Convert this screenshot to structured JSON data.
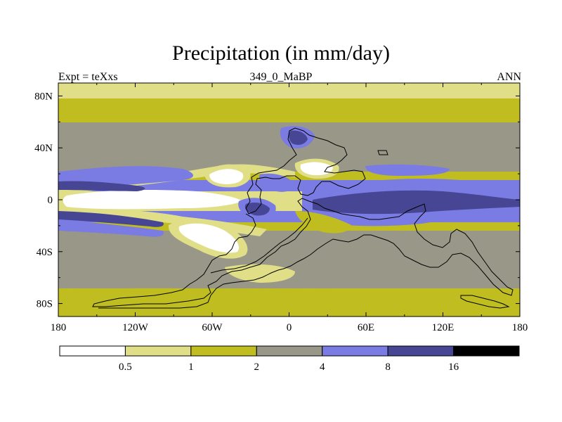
{
  "title": "Precipitation (in mm/day)",
  "subtitle_left": "Expt = teXxs",
  "subtitle_center": "349_0_MaBP",
  "subtitle_right": "ANN",
  "y_axis": {
    "ticks": [
      {
        "lat": 80,
        "label": "80N"
      },
      {
        "lat": 40,
        "label": "40N"
      },
      {
        "lat": 0,
        "label": "0"
      },
      {
        "lat": -40,
        "label": "40S"
      },
      {
        "lat": -80,
        "label": "80S"
      }
    ]
  },
  "x_axis": {
    "ticks": [
      {
        "lon": -180,
        "label": "180"
      },
      {
        "lon": -120,
        "label": "120W"
      },
      {
        "lon": -60,
        "label": "60W"
      },
      {
        "lon": 0,
        "label": "0"
      },
      {
        "lon": 60,
        "label": "60E"
      },
      {
        "lon": 120,
        "label": "120E"
      },
      {
        "lon": 180,
        "label": "180"
      }
    ]
  },
  "colorbar": {
    "colors": [
      "#ffffff",
      "#e0df88",
      "#bfbd1f",
      "#999888",
      "#7b7be4",
      "#464695",
      "#000000"
    ],
    "labels": [
      "0.5",
      "1",
      "2",
      "4",
      "8",
      "16"
    ]
  },
  "colors": {
    "white": "#ffffff",
    "light_yellow": "#e0df88",
    "olive": "#bfbd1f",
    "gray": "#999888",
    "blue": "#7b7be4",
    "dark_blue": "#464695",
    "black": "#000000"
  }
}
